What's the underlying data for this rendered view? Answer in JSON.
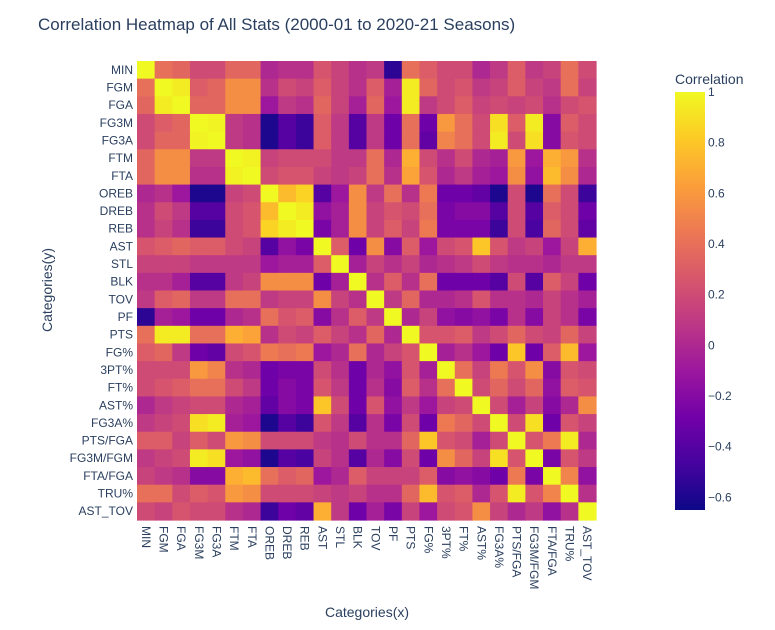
{
  "chart_data": {
    "type": "heatmap",
    "title": "Correlation Heatmap of All Stats (2000-01 to 2020-21 Seasons)",
    "xlabel": "Categories(x)",
    "ylabel": "Categories(y)",
    "colorbar_title": "Correlation",
    "colorscale": "plasma",
    "zmin": -0.65,
    "zmax": 1,
    "colorbar_ticks": [
      1,
      0.8,
      0.6,
      0.4,
      0.2,
      0,
      -0.2,
      -0.4,
      -0.6
    ],
    "colorbar_tick_labels": [
      "1",
      "0.8",
      "0.6",
      "0.4",
      "0.2",
      "0",
      "−0.2",
      "−0.4",
      "−0.6"
    ],
    "categories": [
      "MIN",
      "FGM",
      "FGA",
      "FG3M",
      "FG3A",
      "FTM",
      "FTA",
      "OREB",
      "DREB",
      "REB",
      "AST",
      "STL",
      "BLK",
      "TOV",
      "PF",
      "PTS",
      "FG%",
      "3PT%",
      "FT%",
      "AST%",
      "FG3A%",
      "PTS/FGA",
      "FG3M/FGM",
      "FTA/FGA",
      "TRU%",
      "AST_TOV"
    ],
    "z": [
      [
        1,
        0.4,
        0.35,
        0.2,
        0.2,
        0.35,
        0.35,
        0,
        0.05,
        0.05,
        0.25,
        0.15,
        0.05,
        0.1,
        -0.55,
        0.4,
        0.3,
        0.2,
        0.2,
        0,
        0.1,
        0.3,
        0.1,
        0.15,
        0.4,
        0.2
      ],
      [
        0.4,
        1,
        0.95,
        0.3,
        0.35,
        0.55,
        0.55,
        0.05,
        0.2,
        0.15,
        0.3,
        0.15,
        0.05,
        0.3,
        -0.05,
        0.95,
        0.35,
        0.2,
        0.25,
        0.1,
        0.15,
        0.3,
        0.15,
        0.1,
        0.4,
        0.15
      ],
      [
        0.35,
        0.95,
        1,
        0.35,
        0.35,
        0.55,
        0.55,
        -0.1,
        0.1,
        0.05,
        0.35,
        0.15,
        -0.05,
        0.35,
        -0.1,
        0.95,
        0.1,
        0.2,
        0.3,
        0.15,
        0.2,
        0.15,
        0.2,
        0.05,
        0.2,
        0.25
      ],
      [
        0.2,
        0.3,
        0.35,
        1,
        0.98,
        0.1,
        0.05,
        -0.6,
        -0.4,
        -0.5,
        0.3,
        0.1,
        -0.4,
        0.1,
        -0.3,
        0.4,
        -0.3,
        0.6,
        0.4,
        0.2,
        0.9,
        0.3,
        0.95,
        -0.2,
        0.3,
        0.2
      ],
      [
        0.2,
        0.35,
        0.35,
        0.98,
        1,
        0.1,
        0.05,
        -0.6,
        -0.4,
        -0.5,
        0.3,
        0.1,
        -0.4,
        0.1,
        -0.3,
        0.4,
        -0.35,
        0.5,
        0.4,
        0.2,
        0.95,
        0.2,
        0.9,
        -0.2,
        0.25,
        0.2
      ],
      [
        0.35,
        0.55,
        0.55,
        0.1,
        0.1,
        1,
        0.97,
        0.15,
        0.2,
        0.2,
        0.2,
        0.1,
        0.1,
        0.4,
        0,
        0.7,
        0.2,
        0.05,
        0.2,
        0,
        -0.05,
        0.6,
        -0.1,
        0.7,
        0.6,
        0.05
      ],
      [
        0.35,
        0.55,
        0.55,
        0.05,
        0.05,
        0.97,
        1,
        0.2,
        0.25,
        0.25,
        0.15,
        0.1,
        0.15,
        0.4,
        0.05,
        0.65,
        0.25,
        0,
        0.1,
        -0.05,
        -0.1,
        0.55,
        -0.15,
        0.75,
        0.55,
        0
      ],
      [
        0,
        0.05,
        -0.1,
        -0.6,
        -0.6,
        0.15,
        0.2,
        1,
        0.75,
        0.85,
        -0.4,
        -0.1,
        0.55,
        0.1,
        0.4,
        0.05,
        0.45,
        -0.3,
        -0.3,
        -0.35,
        -0.6,
        0.2,
        -0.6,
        0.4,
        0.2,
        -0.5
      ],
      [
        0.05,
        0.2,
        0.1,
        -0.4,
        -0.4,
        0.2,
        0.25,
        0.75,
        1,
        0.95,
        -0.15,
        -0.05,
        0.55,
        0.15,
        0.25,
        0.2,
        0.4,
        -0.25,
        -0.2,
        -0.2,
        -0.4,
        0.2,
        -0.4,
        0.3,
        0.2,
        -0.3
      ],
      [
        0.05,
        0.15,
        0.05,
        -0.5,
        -0.5,
        0.2,
        0.25,
        0.85,
        0.95,
        1,
        -0.25,
        -0.05,
        0.55,
        0.15,
        0.3,
        0.15,
        0.45,
        -0.25,
        -0.25,
        -0.25,
        -0.5,
        0.2,
        -0.45,
        0.35,
        0.2,
        -0.35
      ],
      [
        0.25,
        0.3,
        0.35,
        0.3,
        0.3,
        0.2,
        0.15,
        -0.4,
        -0.15,
        -0.25,
        1,
        0.3,
        -0.3,
        0.55,
        -0.2,
        0.3,
        -0.1,
        0.2,
        0.25,
        0.8,
        0.25,
        0.1,
        0.15,
        -0.1,
        0.15,
        0.7
      ],
      [
        0.15,
        0.15,
        0.15,
        0.1,
        0.1,
        0.1,
        0.1,
        -0.1,
        -0.05,
        -0.05,
        0.3,
        1,
        -0.05,
        0.15,
        0.05,
        0.15,
        0,
        0.05,
        0.1,
        0.2,
        0.1,
        0.05,
        0.05,
        0,
        0.1,
        0.1
      ],
      [
        0.05,
        0.05,
        -0.05,
        -0.4,
        -0.4,
        0.1,
        0.15,
        0.55,
        0.55,
        0.55,
        -0.3,
        -0.05,
        1,
        0.05,
        0.3,
        0.05,
        0.4,
        -0.3,
        -0.3,
        -0.3,
        -0.4,
        0.2,
        -0.4,
        0.3,
        0.15,
        -0.3
      ],
      [
        0.1,
        0.3,
        0.35,
        0.1,
        0.1,
        0.4,
        0.4,
        0.1,
        0.15,
        0.15,
        0.55,
        0.15,
        0.05,
        1,
        0.1,
        0.35,
        0,
        0,
        0.05,
        0.25,
        0.05,
        0.05,
        0,
        0.15,
        0.05,
        -0.05
      ],
      [
        -0.55,
        -0.05,
        -0.1,
        -0.3,
        -0.3,
        0,
        0.05,
        0.4,
        0.25,
        0.3,
        -0.2,
        0.05,
        0.3,
        0.1,
        1,
        0,
        0.15,
        -0.15,
        -0.2,
        -0.15,
        -0.25,
        0.05,
        -0.2,
        0.15,
        0.05,
        -0.25
      ],
      [
        0.4,
        0.95,
        0.95,
        0.4,
        0.4,
        0.7,
        0.65,
        0.05,
        0.2,
        0.15,
        0.3,
        0.15,
        0.05,
        0.35,
        0,
        1,
        0.25,
        0.25,
        0.3,
        0.1,
        0.2,
        0.35,
        0.2,
        0.15,
        0.35,
        0.15
      ],
      [
        0.3,
        0.35,
        0.1,
        -0.3,
        -0.35,
        0.2,
        0.25,
        0.45,
        0.4,
        0.45,
        -0.1,
        0,
        0.4,
        0,
        0.15,
        0.25,
        1,
        -0.05,
        0.05,
        -0.1,
        -0.3,
        0.8,
        -0.3,
        0.3,
        0.75,
        -0.1
      ],
      [
        0.2,
        0.2,
        0.2,
        0.6,
        0.5,
        0.05,
        0,
        -0.3,
        -0.25,
        -0.25,
        0.2,
        0.05,
        -0.3,
        0,
        -0.15,
        0.25,
        -0.05,
        1,
        0.4,
        0.15,
        0.45,
        0.25,
        0.55,
        -0.2,
        0.25,
        0.2
      ],
      [
        0.2,
        0.25,
        0.3,
        0.4,
        0.4,
        0.2,
        0.1,
        -0.3,
        -0.2,
        -0.25,
        0.25,
        0.1,
        -0.3,
        0.05,
        -0.2,
        0.3,
        0.05,
        0.4,
        1,
        0.2,
        0.35,
        0.2,
        0.35,
        -0.15,
        0.3,
        0.25
      ],
      [
        0,
        0.1,
        0.15,
        0.2,
        0.2,
        0,
        -0.05,
        -0.35,
        -0.2,
        -0.25,
        0.8,
        0.2,
        -0.3,
        0.25,
        -0.15,
        0.1,
        -0.1,
        0.15,
        0.2,
        1,
        0.2,
        -0.05,
        0.15,
        -0.2,
        0,
        0.55
      ],
      [
        0.1,
        0.15,
        0.2,
        0.9,
        0.95,
        -0.05,
        -0.1,
        -0.6,
        -0.4,
        -0.5,
        0.25,
        0.1,
        -0.4,
        0.05,
        -0.25,
        0.2,
        -0.3,
        0.45,
        0.35,
        0.2,
        1,
        0.2,
        0.9,
        -0.3,
        0.25,
        0.15
      ],
      [
        0.3,
        0.3,
        0.15,
        0.3,
        0.2,
        0.6,
        0.55,
        0.2,
        0.2,
        0.2,
        0.1,
        0.05,
        0.2,
        0.05,
        0.05,
        0.35,
        0.8,
        0.25,
        0.2,
        -0.05,
        0.2,
        1,
        0.25,
        0.45,
        0.95,
        0
      ],
      [
        0.1,
        0.15,
        0.2,
        0.95,
        0.9,
        -0.1,
        -0.15,
        -0.6,
        -0.4,
        -0.45,
        0.15,
        0.05,
        -0.4,
        0,
        -0.2,
        0.2,
        -0.3,
        0.55,
        0.35,
        0.15,
        0.9,
        0.25,
        1,
        -0.25,
        0.25,
        0.1
      ],
      [
        0.15,
        0.1,
        0.05,
        -0.2,
        -0.2,
        0.7,
        0.75,
        0.4,
        0.3,
        0.35,
        -0.1,
        0,
        0.3,
        0.15,
        0.15,
        0.15,
        0.3,
        -0.2,
        -0.15,
        -0.2,
        -0.3,
        0.45,
        -0.25,
        1,
        0.5,
        -0.15
      ],
      [
        0.4,
        0.4,
        0.2,
        0.3,
        0.25,
        0.6,
        0.55,
        0.2,
        0.2,
        0.2,
        0.15,
        0.1,
        0.15,
        0.05,
        0.05,
        0.35,
        0.75,
        0.25,
        0.3,
        0,
        0.25,
        0.95,
        0.25,
        0.5,
        1,
        0.05
      ],
      [
        0.2,
        0.15,
        0.25,
        0.2,
        0.2,
        0.05,
        0,
        -0.5,
        -0.3,
        -0.35,
        0.7,
        0.1,
        -0.3,
        -0.05,
        -0.25,
        0.15,
        -0.1,
        0.2,
        0.25,
        0.55,
        0.15,
        0,
        0.1,
        -0.15,
        0.05,
        1
      ]
    ]
  }
}
